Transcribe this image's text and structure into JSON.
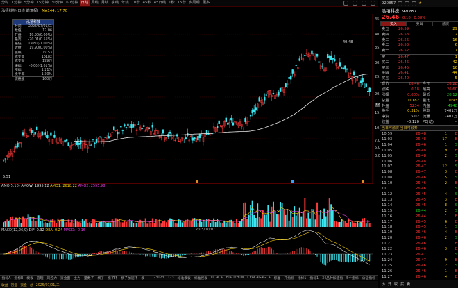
{
  "top_bar": {
    "periods": [
      "分时",
      "1分钟",
      "5分钟",
      "15分钟",
      "30分钟",
      "60分钟",
      "日线",
      "周线",
      "月线",
      "季线",
      "年线",
      "10秒",
      "45秒",
      "45日线",
      "1秒",
      "15秒",
      "多周期",
      "更多"
    ],
    "active_index": 6,
    "icons": [
      "toolbar-icon",
      "layout-icon",
      "grid-icon",
      "window-icon"
    ]
  },
  "title_row": {
    "stock": "泓禧科技(日线 前复权)",
    "ma": "MA144: 17.70"
  },
  "info_box": {
    "title": "泓禧科技",
    "rows": [
      {
        "k": "时间",
        "v": "2025/07/01/二",
        "c": "wht"
      },
      {
        "k": "数值",
        "v": "17.06",
        "c": "wht"
      },
      {
        "k": "开盘",
        "v": "19.90(0.00%)",
        "c": "wht"
      },
      {
        "k": "最高",
        "v": "-20.01(0.55%)",
        "c": "red"
      },
      {
        "k": "最低",
        "v": "19.80(-1.00%)",
        "c": "green"
      },
      {
        "k": "收盘",
        "v": "19.90(0.00%)",
        "c": "green"
      },
      {
        "k": "涨跌",
        "v": "19.53",
        "c": "yel"
      },
      {
        "k": "成交量",
        "v": "10182",
        "c": "yel"
      },
      {
        "k": "成交额",
        "v": "199万",
        "c": "yel"
      },
      {
        "k": "振幅",
        "v": "-0.00(-1.61%)",
        "c": "green"
      },
      {
        "k": "涨幅",
        "v": "1.21%",
        "c": "yel"
      },
      {
        "k": "换手率",
        "v": "1.30%",
        "c": "yel"
      },
      {
        "k": "流通股",
        "v": "160万",
        "c": "yel"
      }
    ]
  },
  "axis": {
    "labels": [
      "45.00",
      "40.00",
      "35.00",
      "30.00",
      "25.00",
      "20.00",
      "17.06",
      "15.00",
      "10.00",
      "7.00",
      "5.00",
      "3.00"
    ],
    "peak_label": "40.48",
    "low_label": "5.51",
    "cur_label": "17.06",
    "date_label": "2025/07/01/二"
  },
  "chart_data": [
    {
      "type": "candlestick",
      "title": "泓禧科技(日线 前复权)",
      "xlabel": "",
      "ylabel": "",
      "ylim": [
        0,
        46
      ],
      "series_hint": "daily OHLC, rises from ~5.5 to peak 40.48 then pulls back to ~26",
      "ma144": "MA144",
      "peak": 40.48,
      "low": 5.51
    },
    {
      "type": "bar",
      "title": "AMO(5,10)",
      "series": [
        {
          "name": "AMOW",
          "value": 1995.12
        },
        {
          "name": "AMO1",
          "value": 2618.22
        },
        {
          "name": "AMO2",
          "value": 2555.98
        }
      ],
      "ylim": [
        0,
        30000
      ]
    },
    {
      "type": "line",
      "title": "MACD(12,26,9)",
      "series": [
        {
          "name": "DIF",
          "value": 0.32
        },
        {
          "name": "DEA",
          "value": 0.24
        },
        {
          "name": "MACD",
          "value": -0.16
        }
      ]
    }
  ],
  "amo": {
    "title": "AMO(5,10)",
    "w": "AMOW: 1995.12",
    "a1": "AMO1: 2618.22",
    "a2": "AMO2: 2555.98",
    "axis": [
      "30000",
      "20000",
      "10000"
    ]
  },
  "macd": {
    "title": "MACD(12,26,9)",
    "dif": "DIF: 0.32",
    "dea": "DEA: 0.24",
    "m": "MACD: -0.16",
    "axis": [
      "2.00",
      "1.00",
      "0.00",
      "-1.00",
      "-2.00"
    ]
  },
  "bottom_tabs": [
    "指标A",
    "指标B",
    "模板",
    "管理",
    "风控力",
    "资金面",
    "主力",
    "里数子",
    "横子",
    "横子环",
    "横子加速环",
    "模",
    "1",
    "23123",
    "123",
    "标准模板",
    "标准视板",
    "DCACA",
    "BIAO2HUN",
    "CEACAGAGCA",
    "标准",
    "开指标",
    "指标1",
    "指标1",
    "34品种加速指",
    "5个指标",
    "公证指标"
  ],
  "status_bar": [
    "收益",
    "行业",
    "资金",
    "总",
    "2025/07/01/二"
  ],
  "right": {
    "head_code": "920857",
    "head_icons": [
      "home-icon",
      "chart-icon",
      "grid-icon",
      "star-icon"
    ],
    "name": "泓禧科技",
    "code": "920857",
    "price": "26.46",
    "change": "0.18",
    "pct": "0.68%",
    "tabs": [
      "买入",
      "卖出",
      "融资"
    ],
    "sell": [
      {
        "l": "卖五",
        "p": "26.59",
        "v": "29"
      },
      {
        "l": "卖四",
        "p": "26.58",
        "v": "2"
      },
      {
        "l": "卖三",
        "p": "26.56",
        "v": "16"
      },
      {
        "l": "卖二",
        "p": "26.53",
        "v": "6"
      },
      {
        "l": "卖一",
        "p": "26.52",
        "v": "7"
      }
    ],
    "buy": [
      {
        "l": "买一",
        "p": "26.47",
        "v": "1"
      },
      {
        "l": "买二",
        "p": "26.46",
        "v": "42"
      },
      {
        "l": "买三",
        "p": "26.45",
        "v": "16"
      },
      {
        "l": "买四",
        "p": "26.41",
        "v": "44"
      },
      {
        "l": "买五",
        "p": "26.40",
        "v": "5"
      }
    ],
    "stats": [
      {
        "k": "现价",
        "v": "26.46",
        "vc": "red",
        "k2": "今开",
        "v2": "26.28",
        "v2c": "red"
      },
      {
        "k": "涨跌",
        "v": "0.18",
        "vc": "red",
        "k2": "最高",
        "v2": "26.60",
        "v2c": "red"
      },
      {
        "k": "涨幅",
        "v": "0.68%",
        "vc": "red",
        "k2": "最低",
        "v2": "26.12",
        "v2c": "green"
      },
      {
        "k": "总量",
        "v": "10182",
        "vc": "yel",
        "k2": "量比",
        "v2": "0.93",
        "v2c": "yel"
      },
      {
        "k": "外盘",
        "v": "5234",
        "vc": "red",
        "k2": "内盘",
        "v2": "4948",
        "v2c": "green"
      },
      {
        "k": "换手",
        "v": "0.31%",
        "vc": "yel",
        "k2": "股本",
        "v2": "7401万",
        "v2c": "wht"
      },
      {
        "k": "净资",
        "v": "5.02",
        "vc": "wht",
        "k2": "流通",
        "v2": "7401万",
        "v2c": "wht"
      },
      {
        "k": "收益",
        "v": "-0.120",
        "vc": "wht",
        "k2": "PE(动)",
        "v2": "--",
        "v2c": "wht"
      }
    ],
    "sep_label": "当日可融资  当日可融券",
    "ticks": [
      {
        "t": "10:59",
        "p": "26.48",
        "v": "1",
        "d": "B",
        "pc": "red"
      },
      {
        "t": "11:03",
        "p": "26.48",
        "v": "17",
        "d": "B",
        "pc": "red"
      },
      {
        "t": "11:04",
        "p": "26.46",
        "v": "1",
        "d": "S",
        "pc": "red"
      },
      {
        "t": "11:05",
        "p": "26.48",
        "v": "9",
        "d": "B",
        "pc": "red"
      },
      {
        "t": "11:05",
        "p": "26.48",
        "v": "2",
        "d": "S",
        "pc": "red"
      },
      {
        "t": "11:06",
        "p": "26.48",
        "v": "1",
        "d": "B",
        "pc": "red"
      },
      {
        "t": "11:07",
        "p": "26.47",
        "v": "12",
        "d": "S",
        "pc": "red"
      },
      {
        "t": "11:08",
        "p": "26.47",
        "v": "3",
        "d": "B",
        "pc": "red"
      },
      {
        "t": "11:08",
        "p": "26.46",
        "v": "5",
        "d": "S",
        "pc": "red"
      },
      {
        "t": "11:10",
        "p": "26.46",
        "v": "2",
        "d": "B",
        "pc": "red"
      },
      {
        "t": "11:11",
        "p": "26.46",
        "v": "1",
        "d": "S",
        "pc": "red"
      },
      {
        "t": "11:12",
        "p": "26.45",
        "v": "4",
        "d": "S",
        "pc": "red"
      },
      {
        "t": "11:13",
        "p": "26.45",
        "v": "3",
        "d": "B",
        "pc": "red"
      },
      {
        "t": "11:14",
        "p": "26.45",
        "v": "8",
        "d": "S",
        "pc": "red"
      },
      {
        "t": "11:15",
        "p": "26.44",
        "v": "2",
        "d": "S",
        "pc": "green"
      },
      {
        "t": "11:16",
        "p": "26.44",
        "v": "1",
        "d": "B",
        "pc": "red"
      },
      {
        "t": "11:17",
        "p": "26.45",
        "v": "6",
        "d": "B",
        "pc": "red"
      },
      {
        "t": "11:18",
        "p": "26.45",
        "v": "1",
        "d": "S",
        "pc": "red"
      },
      {
        "t": "11:19",
        "p": "26.46",
        "v": "4",
        "d": "B",
        "pc": "red"
      },
      {
        "t": "11:20",
        "p": "26.46",
        "v": "2",
        "d": "S",
        "pc": "red"
      },
      {
        "t": "11:21",
        "p": "26.46",
        "v": "1",
        "d": "B",
        "pc": "red"
      },
      {
        "t": "11:22",
        "p": "26.46",
        "v": "3",
        "d": "B",
        "pc": "red"
      },
      {
        "t": "11:23",
        "p": "26.47",
        "v": "1",
        "d": "S",
        "pc": "red"
      },
      {
        "t": "11:24",
        "p": "26.47",
        "v": "9",
        "d": "B",
        "pc": "red"
      },
      {
        "t": "11:25",
        "p": "26.46",
        "v": "2",
        "d": "S",
        "pc": "red"
      },
      {
        "t": "11:26",
        "p": "26.46",
        "v": "1",
        "d": "B",
        "pc": "red"
      },
      {
        "t": "11:27",
        "p": "26.46",
        "v": "4",
        "d": "B",
        "pc": "red"
      },
      {
        "t": "11:28",
        "p": "26.45",
        "v": "3",
        "d": "S",
        "pc": "red"
      }
    ],
    "foot": [
      "历",
      "开",
      "收",
      "买",
      "卖"
    ]
  }
}
